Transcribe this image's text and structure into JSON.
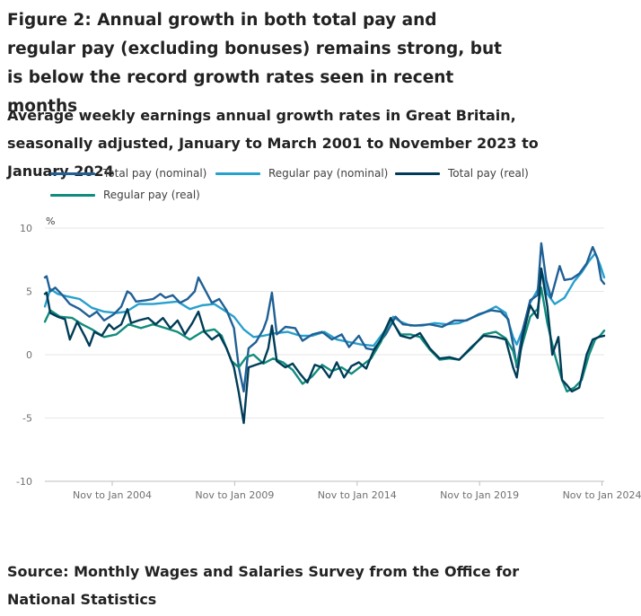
{
  "figure": {
    "title": "Figure 2: Annual growth in both total pay and regular pay (excluding bonuses) remains strong, but is below the record growth rates seen in recent months",
    "subtitle": "Average weekly earnings annual growth rates in Great Britain, seasonally adjusted, January to March 2001 to November 2023 to January 2024",
    "source": "Source: Monthly Wages and Salaries Survey from the Office for National Statistics"
  },
  "legend": {
    "total_nominal": "Total pay (nominal)",
    "regular_nominal": "Regular pay (nominal)",
    "total_real": "Total pay (real)",
    "regular_real": "Regular pay (real)"
  },
  "colors": {
    "total_nominal": "#206095",
    "regular_nominal": "#27a0cc",
    "total_real": "#003c57",
    "regular_real": "#118c7b",
    "grid": "#e6e6e6",
    "axis_text": "#707071"
  },
  "chart_data": {
    "type": "line",
    "title": "Average weekly earnings annual growth rates in Great Britain, seasonally adjusted",
    "ylabel": "%",
    "xlabel": "",
    "ylim": [
      -10,
      10
    ],
    "yticks": [
      10,
      5,
      0,
      -5,
      -10
    ],
    "ytick_labels": [
      "10",
      "5",
      "0",
      "-5",
      "-10"
    ],
    "xlim": [
      2001.08,
      2023.92
    ],
    "xticks": [
      2003.83,
      2008.83,
      2013.83,
      2018.83,
      2023.83
    ],
    "xtick_labels": [
      "Nov to Jan 2004",
      "Nov to Jan 2009",
      "Nov to Jan 2014",
      "Nov to Jan 2019",
      "Nov to Jan 2024"
    ],
    "series": [
      {
        "key": "regular_nominal",
        "name": "Regular pay (nominal)",
        "points": [
          [
            2001.08,
            3.8
          ],
          [
            2001.3,
            5.2
          ],
          [
            2001.6,
            4.8
          ],
          [
            2002.0,
            4.6
          ],
          [
            2002.5,
            4.4
          ],
          [
            2003.0,
            3.7
          ],
          [
            2003.5,
            3.4
          ],
          [
            2004.0,
            3.3
          ],
          [
            2004.4,
            3.4
          ],
          [
            2004.9,
            4.0
          ],
          [
            2005.5,
            4.0
          ],
          [
            2006.0,
            4.1
          ],
          [
            2006.5,
            4.2
          ],
          [
            2007.0,
            3.6
          ],
          [
            2007.5,
            3.9
          ],
          [
            2008.0,
            4.0
          ],
          [
            2008.4,
            3.5
          ],
          [
            2008.8,
            3.0
          ],
          [
            2009.2,
            2.0
          ],
          [
            2009.6,
            1.4
          ],
          [
            2010.0,
            1.5
          ],
          [
            2010.5,
            1.7
          ],
          [
            2011.0,
            1.8
          ],
          [
            2011.5,
            1.5
          ],
          [
            2012.0,
            1.5
          ],
          [
            2012.5,
            1.8
          ],
          [
            2013.0,
            1.2
          ],
          [
            2013.5,
            1.0
          ],
          [
            2014.0,
            0.8
          ],
          [
            2014.5,
            0.7
          ],
          [
            2015.0,
            2.0
          ],
          [
            2015.3,
            3.0
          ],
          [
            2015.6,
            2.6
          ],
          [
            2016.0,
            2.3
          ],
          [
            2016.5,
            2.3
          ],
          [
            2017.0,
            2.5
          ],
          [
            2017.5,
            2.4
          ],
          [
            2018.0,
            2.5
          ],
          [
            2018.5,
            2.9
          ],
          [
            2019.0,
            3.3
          ],
          [
            2019.5,
            3.8
          ],
          [
            2019.9,
            3.3
          ],
          [
            2020.2,
            1.4
          ],
          [
            2020.35,
            0.8
          ],
          [
            2020.6,
            2.0
          ],
          [
            2020.9,
            4.1
          ],
          [
            2021.2,
            5.1
          ],
          [
            2021.35,
            6.8
          ],
          [
            2021.6,
            4.8
          ],
          [
            2021.9,
            4.0
          ],
          [
            2022.3,
            4.5
          ],
          [
            2022.7,
            5.8
          ],
          [
            2023.0,
            6.5
          ],
          [
            2023.3,
            7.4
          ],
          [
            2023.55,
            8.0
          ],
          [
            2023.75,
            7.1
          ],
          [
            2023.92,
            6.1
          ]
        ]
      },
      {
        "key": "total_nominal",
        "name": "Total pay (nominal)",
        "points": [
          [
            2001.08,
            6.1
          ],
          [
            2001.15,
            6.2
          ],
          [
            2001.3,
            5.0
          ],
          [
            2001.5,
            5.3
          ],
          [
            2001.8,
            4.7
          ],
          [
            2002.1,
            4.0
          ],
          [
            2002.5,
            3.6
          ],
          [
            2002.9,
            3.0
          ],
          [
            2003.2,
            3.4
          ],
          [
            2003.5,
            2.7
          ],
          [
            2003.9,
            3.2
          ],
          [
            2004.2,
            3.8
          ],
          [
            2004.45,
            5.0
          ],
          [
            2004.6,
            4.8
          ],
          [
            2004.8,
            4.2
          ],
          [
            2005.2,
            4.3
          ],
          [
            2005.5,
            4.4
          ],
          [
            2005.8,
            4.8
          ],
          [
            2006.0,
            4.5
          ],
          [
            2006.3,
            4.7
          ],
          [
            2006.6,
            4.1
          ],
          [
            2006.9,
            4.4
          ],
          [
            2007.2,
            5.0
          ],
          [
            2007.35,
            6.1
          ],
          [
            2007.6,
            5.2
          ],
          [
            2007.9,
            4.1
          ],
          [
            2008.2,
            4.4
          ],
          [
            2008.5,
            3.5
          ],
          [
            2008.8,
            2.1
          ],
          [
            2009.0,
            -1.0
          ],
          [
            2009.2,
            -2.9
          ],
          [
            2009.4,
            0.5
          ],
          [
            2009.7,
            1.0
          ],
          [
            2010.0,
            2.0
          ],
          [
            2010.15,
            2.8
          ],
          [
            2010.35,
            4.9
          ],
          [
            2010.55,
            1.6
          ],
          [
            2010.9,
            2.2
          ],
          [
            2011.3,
            2.1
          ],
          [
            2011.6,
            1.1
          ],
          [
            2012.0,
            1.6
          ],
          [
            2012.4,
            1.8
          ],
          [
            2012.8,
            1.2
          ],
          [
            2013.2,
            1.6
          ],
          [
            2013.5,
            0.6
          ],
          [
            2013.9,
            1.5
          ],
          [
            2014.2,
            0.5
          ],
          [
            2014.5,
            0.4
          ],
          [
            2015.0,
            1.6
          ],
          [
            2015.4,
            3.0
          ],
          [
            2015.7,
            2.4
          ],
          [
            2016.2,
            2.3
          ],
          [
            2016.8,
            2.4
          ],
          [
            2017.3,
            2.2
          ],
          [
            2017.8,
            2.7
          ],
          [
            2018.3,
            2.7
          ],
          [
            2018.8,
            3.2
          ],
          [
            2019.3,
            3.5
          ],
          [
            2019.7,
            3.4
          ],
          [
            2020.0,
            2.8
          ],
          [
            2020.25,
            0.3
          ],
          [
            2020.35,
            -1.0
          ],
          [
            2020.6,
            2.0
          ],
          [
            2020.9,
            4.3
          ],
          [
            2021.2,
            4.7
          ],
          [
            2021.35,
            8.8
          ],
          [
            2021.55,
            5.9
          ],
          [
            2021.75,
            4.5
          ],
          [
            2022.1,
            7.0
          ],
          [
            2022.3,
            5.9
          ],
          [
            2022.6,
            6.0
          ],
          [
            2022.9,
            6.4
          ],
          [
            2023.2,
            7.2
          ],
          [
            2023.45,
            8.5
          ],
          [
            2023.65,
            7.6
          ],
          [
            2023.8,
            5.9
          ],
          [
            2023.92,
            5.6
          ]
        ]
      },
      {
        "key": "regular_real",
        "name": "Regular pay (real)",
        "points": [
          [
            2001.08,
            2.6
          ],
          [
            2001.3,
            3.5
          ],
          [
            2001.7,
            3.0
          ],
          [
            2002.2,
            2.9
          ],
          [
            2002.6,
            2.4
          ],
          [
            2003.0,
            2.0
          ],
          [
            2003.5,
            1.4
          ],
          [
            2004.0,
            1.6
          ],
          [
            2004.5,
            2.4
          ],
          [
            2005.0,
            2.1
          ],
          [
            2005.5,
            2.4
          ],
          [
            2006.0,
            2.1
          ],
          [
            2006.5,
            1.8
          ],
          [
            2007.0,
            1.2
          ],
          [
            2007.5,
            1.8
          ],
          [
            2008.0,
            2.0
          ],
          [
            2008.3,
            1.5
          ],
          [
            2008.7,
            -0.5
          ],
          [
            2009.0,
            -1.0
          ],
          [
            2009.3,
            -0.2
          ],
          [
            2009.6,
            0.0
          ],
          [
            2010.0,
            -0.7
          ],
          [
            2010.4,
            -0.3
          ],
          [
            2010.8,
            -0.6
          ],
          [
            2011.2,
            -1.2
          ],
          [
            2011.6,
            -2.3
          ],
          [
            2012.0,
            -1.7
          ],
          [
            2012.4,
            -0.8
          ],
          [
            2012.8,
            -1.3
          ],
          [
            2013.2,
            -1.0
          ],
          [
            2013.6,
            -1.5
          ],
          [
            2014.0,
            -0.9
          ],
          [
            2014.4,
            -0.3
          ],
          [
            2014.8,
            1.0
          ],
          [
            2015.2,
            2.8
          ],
          [
            2015.6,
            1.6
          ],
          [
            2016.0,
            1.6
          ],
          [
            2016.4,
            1.4
          ],
          [
            2016.8,
            0.4
          ],
          [
            2017.2,
            -0.4
          ],
          [
            2017.6,
            -0.3
          ],
          [
            2018.0,
            -0.4
          ],
          [
            2018.5,
            0.5
          ],
          [
            2019.0,
            1.6
          ],
          [
            2019.5,
            1.8
          ],
          [
            2019.9,
            1.3
          ],
          [
            2020.2,
            0.3
          ],
          [
            2020.35,
            -0.8
          ],
          [
            2020.6,
            1.0
          ],
          [
            2020.9,
            3.0
          ],
          [
            2021.2,
            3.6
          ],
          [
            2021.35,
            5.3
          ],
          [
            2021.6,
            2.5
          ],
          [
            2021.9,
            0.0
          ],
          [
            2022.2,
            -2.0
          ],
          [
            2022.4,
            -2.9
          ],
          [
            2022.7,
            -2.6
          ],
          [
            2023.0,
            -2.0
          ],
          [
            2023.3,
            0.0
          ],
          [
            2023.55,
            1.2
          ],
          [
            2023.75,
            1.5
          ],
          [
            2023.92,
            1.9
          ]
        ]
      },
      {
        "key": "total_real",
        "name": "Total pay (real)",
        "points": [
          [
            2001.08,
            4.8
          ],
          [
            2001.15,
            4.9
          ],
          [
            2001.3,
            3.3
          ],
          [
            2001.6,
            3.0
          ],
          [
            2001.9,
            2.8
          ],
          [
            2002.1,
            1.2
          ],
          [
            2002.4,
            2.6
          ],
          [
            2002.7,
            1.5
          ],
          [
            2002.9,
            0.7
          ],
          [
            2003.1,
            1.8
          ],
          [
            2003.4,
            1.5
          ],
          [
            2003.7,
            2.4
          ],
          [
            2003.9,
            2.0
          ],
          [
            2004.2,
            2.4
          ],
          [
            2004.45,
            3.6
          ],
          [
            2004.6,
            2.5
          ],
          [
            2004.9,
            2.7
          ],
          [
            2005.3,
            2.9
          ],
          [
            2005.6,
            2.4
          ],
          [
            2005.9,
            2.9
          ],
          [
            2006.2,
            2.1
          ],
          [
            2006.5,
            2.7
          ],
          [
            2006.8,
            1.6
          ],
          [
            2007.1,
            2.5
          ],
          [
            2007.35,
            3.4
          ],
          [
            2007.6,
            1.8
          ],
          [
            2007.9,
            1.2
          ],
          [
            2008.2,
            1.6
          ],
          [
            2008.5,
            0.5
          ],
          [
            2008.8,
            -1.0
          ],
          [
            2009.0,
            -3.0
          ],
          [
            2009.2,
            -5.4
          ],
          [
            2009.4,
            -1.0
          ],
          [
            2009.7,
            -0.8
          ],
          [
            2010.0,
            -0.6
          ],
          [
            2010.2,
            0.5
          ],
          [
            2010.35,
            2.3
          ],
          [
            2010.55,
            -0.5
          ],
          [
            2010.9,
            -1.0
          ],
          [
            2011.2,
            -0.7
          ],
          [
            2011.5,
            -1.5
          ],
          [
            2011.8,
            -2.2
          ],
          [
            2012.1,
            -0.8
          ],
          [
            2012.4,
            -1.0
          ],
          [
            2012.7,
            -1.8
          ],
          [
            2013.0,
            -0.6
          ],
          [
            2013.3,
            -1.8
          ],
          [
            2013.6,
            -0.9
          ],
          [
            2013.9,
            -0.6
          ],
          [
            2014.2,
            -1.1
          ],
          [
            2014.5,
            0.3
          ],
          [
            2014.8,
            1.2
          ],
          [
            2015.2,
            2.9
          ],
          [
            2015.6,
            1.5
          ],
          [
            2016.0,
            1.3
          ],
          [
            2016.4,
            1.7
          ],
          [
            2016.8,
            0.5
          ],
          [
            2017.2,
            -0.3
          ],
          [
            2017.6,
            -0.2
          ],
          [
            2018.0,
            -0.4
          ],
          [
            2018.5,
            0.6
          ],
          [
            2019.0,
            1.5
          ],
          [
            2019.5,
            1.4
          ],
          [
            2019.9,
            1.2
          ],
          [
            2020.2,
            -1.0
          ],
          [
            2020.35,
            -1.8
          ],
          [
            2020.6,
            1.5
          ],
          [
            2020.9,
            3.9
          ],
          [
            2021.2,
            2.9
          ],
          [
            2021.35,
            6.8
          ],
          [
            2021.6,
            3.8
          ],
          [
            2021.8,
            0.0
          ],
          [
            2022.05,
            1.4
          ],
          [
            2022.2,
            -2.0
          ],
          [
            2022.4,
            -2.4
          ],
          [
            2022.6,
            -2.9
          ],
          [
            2022.9,
            -2.6
          ],
          [
            2023.2,
            0.0
          ],
          [
            2023.45,
            1.2
          ],
          [
            2023.7,
            1.4
          ],
          [
            2023.92,
            1.5
          ]
        ]
      }
    ]
  }
}
